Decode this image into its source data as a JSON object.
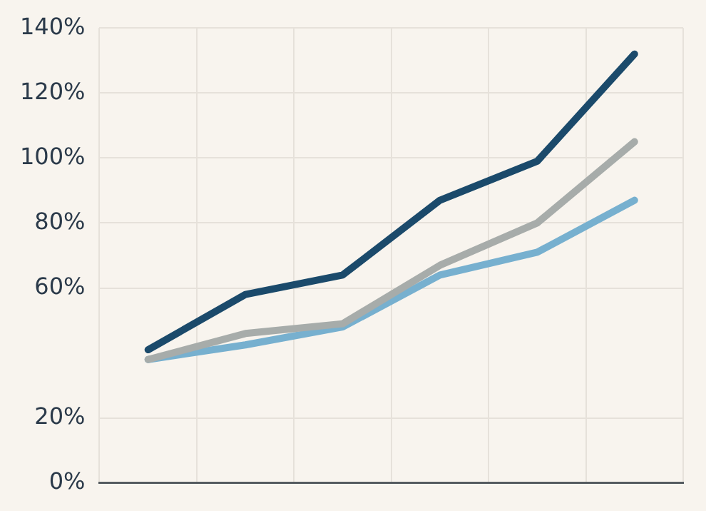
{
  "chart_data": {
    "type": "line",
    "categories": [
      null,
      null,
      null,
      null,
      null,
      null
    ],
    "series": [
      {
        "color": "#1b4a6b",
        "values": [
          41,
          58,
          64,
          87,
          99,
          132
        ]
      },
      {
        "color": "#a7acaa",
        "values": [
          38,
          46,
          49,
          67,
          80,
          105
        ]
      },
      {
        "color": "#77b0cf",
        "values": [
          38,
          42.5,
          48,
          64,
          71,
          87
        ]
      }
    ],
    "ylim": [
      0,
      140
    ],
    "yticks": [
      {
        "value": 0,
        "label": "0%"
      },
      {
        "value": 20,
        "label": "20%"
      },
      {
        "value": 60,
        "label": "60%"
      },
      {
        "value": 80,
        "label": "80%"
      },
      {
        "value": 100,
        "label": "100%"
      },
      {
        "value": 120,
        "label": "120%"
      },
      {
        "value": 140,
        "label": "140%"
      }
    ],
    "tick_labels": "y",
    "grid": true,
    "legend": false,
    "marker": "none",
    "line_style": "solid"
  }
}
